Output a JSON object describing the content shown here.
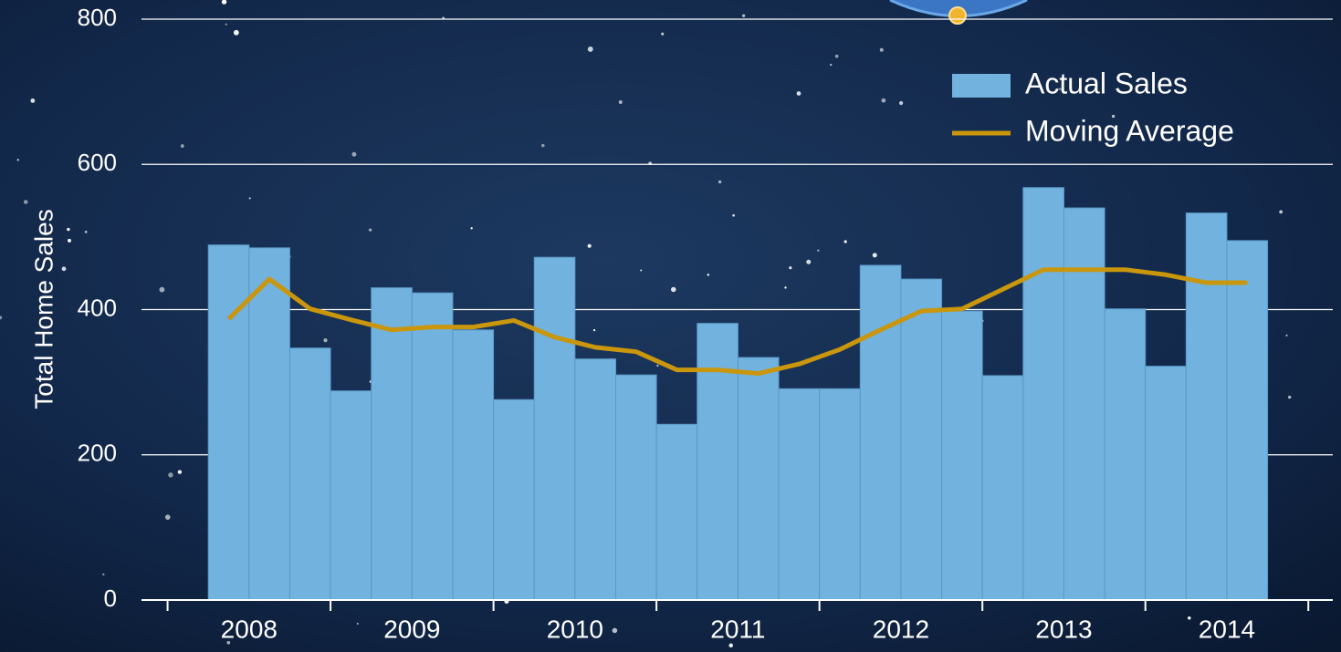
{
  "chart_data": {
    "type": "bar",
    "y_label": "Total Home Sales",
    "x": [
      2008.375,
      2008.625,
      2008.875,
      2009.125,
      2009.375,
      2009.625,
      2009.875,
      2010.125,
      2010.375,
      2010.625,
      2010.875,
      2011.125,
      2011.375,
      2011.625,
      2011.875,
      2012.125,
      2012.375,
      2012.625,
      2012.875,
      2013.125,
      2013.375,
      2013.625,
      2013.875,
      2014.125,
      2014.375,
      2014.625
    ],
    "series": [
      {
        "name": "Actual Sales",
        "type": "bar",
        "color": "#72b2de",
        "values": [
          489,
          485,
          347,
          288,
          430,
          423,
          372,
          276,
          472,
          332,
          310,
          242,
          381,
          334,
          291,
          291,
          461,
          442,
          398,
          309,
          568,
          540,
          401,
          322,
          533,
          495
        ]
      },
      {
        "name": "Moving Average",
        "type": "line",
        "color": "#c9960c",
        "values": [
          387,
          442,
          401,
          386,
          372,
          376,
          376,
          385,
          362,
          348,
          342,
          317,
          317,
          312,
          325,
          345,
          372,
          398,
          401,
          428,
          455,
          455,
          455,
          448,
          437,
          437
        ]
      }
    ],
    "xlim": [
      2007.84,
      2015.15
    ],
    "xticks": [
      {
        "value": 2008.5,
        "label": "2008"
      },
      {
        "value": 2009.5,
        "label": "2009"
      },
      {
        "value": 2010.5,
        "label": "2010"
      },
      {
        "value": 2011.5,
        "label": "2011"
      },
      {
        "value": 2012.5,
        "label": "2012"
      },
      {
        "value": 2013.5,
        "label": "2013"
      },
      {
        "value": 2014.5,
        "label": "2014"
      }
    ],
    "ylim": [
      0,
      800
    ],
    "yticks": [
      0,
      200,
      400,
      600,
      800
    ],
    "grid": true,
    "legend": "upper right"
  }
}
